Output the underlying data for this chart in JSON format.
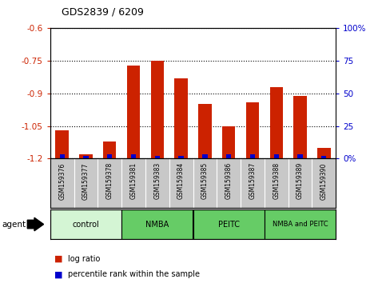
{
  "title": "GDS2839 / 6209",
  "samples": [
    "GSM159376",
    "GSM159377",
    "GSM159378",
    "GSM159381",
    "GSM159383",
    "GSM159384",
    "GSM159385",
    "GSM159386",
    "GSM159387",
    "GSM159388",
    "GSM159389",
    "GSM159390"
  ],
  "log_ratio": [
    -1.07,
    -1.18,
    -1.12,
    -0.77,
    -0.75,
    -0.83,
    -0.95,
    -1.05,
    -0.94,
    -0.87,
    -0.91,
    -1.15
  ],
  "percentile": [
    3,
    2,
    3,
    3,
    2,
    2,
    3,
    3,
    3,
    3,
    3,
    2
  ],
  "ylim_left": [
    -1.2,
    -0.6
  ],
  "ylim_right": [
    0,
    100
  ],
  "yticks_left": [
    -1.2,
    -1.05,
    -0.9,
    -0.75,
    -0.6
  ],
  "yticks_right": [
    0,
    25,
    50,
    75,
    100
  ],
  "ytick_labels_left": [
    "-1.2",
    "-1.05",
    "-0.9",
    "-0.75",
    "-0.6"
  ],
  "ytick_labels_right": [
    "0%",
    "25",
    "50",
    "75",
    "100%"
  ],
  "group_defs": [
    {
      "label": "control",
      "start": 0,
      "end": 2,
      "color": "#d4f5d4"
    },
    {
      "label": "NMBA",
      "start": 3,
      "end": 5,
      "color": "#66cc66"
    },
    {
      "label": "PEITC",
      "start": 6,
      "end": 8,
      "color": "#66cc66"
    },
    {
      "label": "NMBA and PEITC",
      "start": 9,
      "end": 11,
      "color": "#66cc66"
    }
  ],
  "bar_color_red": "#cc2200",
  "bar_color_blue": "#0000cc",
  "left_axis_color": "#cc2200",
  "right_axis_color": "#0000cc",
  "tick_bg_color": "#c8c8c8",
  "fig_width": 4.83,
  "fig_height": 3.54,
  "fig_dpi": 100
}
